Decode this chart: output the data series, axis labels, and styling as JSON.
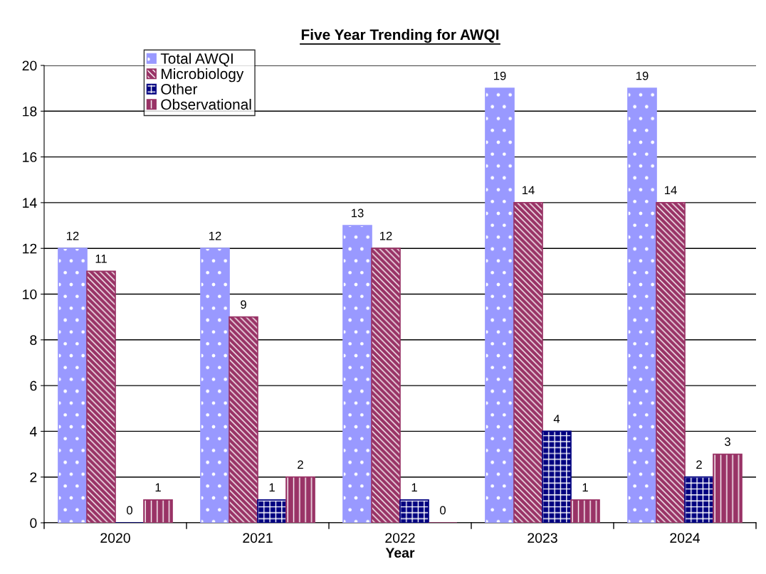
{
  "chart_data": {
    "type": "bar",
    "title": "Five Year Trending for AWQI",
    "xlabel": "Year",
    "categories": [
      "2020",
      "2021",
      "2022",
      "2023",
      "2024"
    ],
    "series": [
      {
        "name": "Total AWQI",
        "color": "#9999ff",
        "values": [
          12,
          12,
          13,
          19,
          19
        ]
      },
      {
        "name": "Microbiology",
        "color": "#993366",
        "values": [
          11,
          9,
          12,
          14,
          14
        ]
      },
      {
        "name": "Other",
        "color": "#000080",
        "values": [
          0,
          1,
          1,
          4,
          2
        ]
      },
      {
        "name": "Observational",
        "color": "#993366",
        "values": [
          1,
          2,
          0,
          1,
          3
        ]
      }
    ],
    "ylim": [
      0,
      20
    ],
    "yticks": [
      0,
      2,
      4,
      6,
      8,
      10,
      12,
      14,
      16,
      18,
      20
    ],
    "grid": "y",
    "legend": "top left",
    "data_labels": true
  }
}
